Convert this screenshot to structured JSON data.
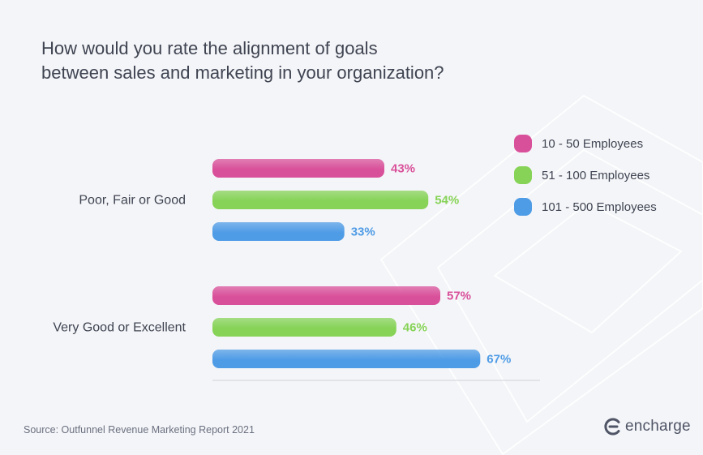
{
  "title_lines": [
    "How would you rate the alignment of goals",
    "between sales and marketing in your organization?"
  ],
  "colors": {
    "pink": "#d9509a",
    "green": "#86d357",
    "blue": "#4f9ce6",
    "text": "#3f4452",
    "axis": "#dcdde3"
  },
  "legend": [
    {
      "label": "10 - 50 Employees",
      "color": "#d9509a"
    },
    {
      "label": "51 - 100 Employees",
      "color": "#86d357"
    },
    {
      "label": "101 - 500 Employees",
      "color": "#4f9ce6"
    }
  ],
  "source": "Source: Outfunnel Revenue Marketing Report 2021",
  "brand": {
    "name": "encharge",
    "icon": "encharge-logo-icon"
  },
  "chart_data": {
    "type": "bar",
    "orientation": "horizontal",
    "title": "How would you rate the alignment of goals between sales and marketing in your organization?",
    "categories": [
      "Poor, Fair or Good",
      "Very Good or Excellent"
    ],
    "series": [
      {
        "name": "10 - 50 Employees",
        "values": [
          43,
          57
        ],
        "labels": [
          "43%",
          "57%"
        ],
        "color": "#d9509a"
      },
      {
        "name": "51 - 100 Employees",
        "values": [
          54,
          46
        ],
        "labels": [
          "54%",
          "46%"
        ],
        "color": "#86d357"
      },
      {
        "name": "101 - 500 Employees",
        "values": [
          33,
          67
        ],
        "labels": [
          "33%",
          "67%"
        ],
        "color": "#4f9ce6"
      }
    ],
    "unit": "%",
    "legend_position": "top-right",
    "grid": false
  }
}
